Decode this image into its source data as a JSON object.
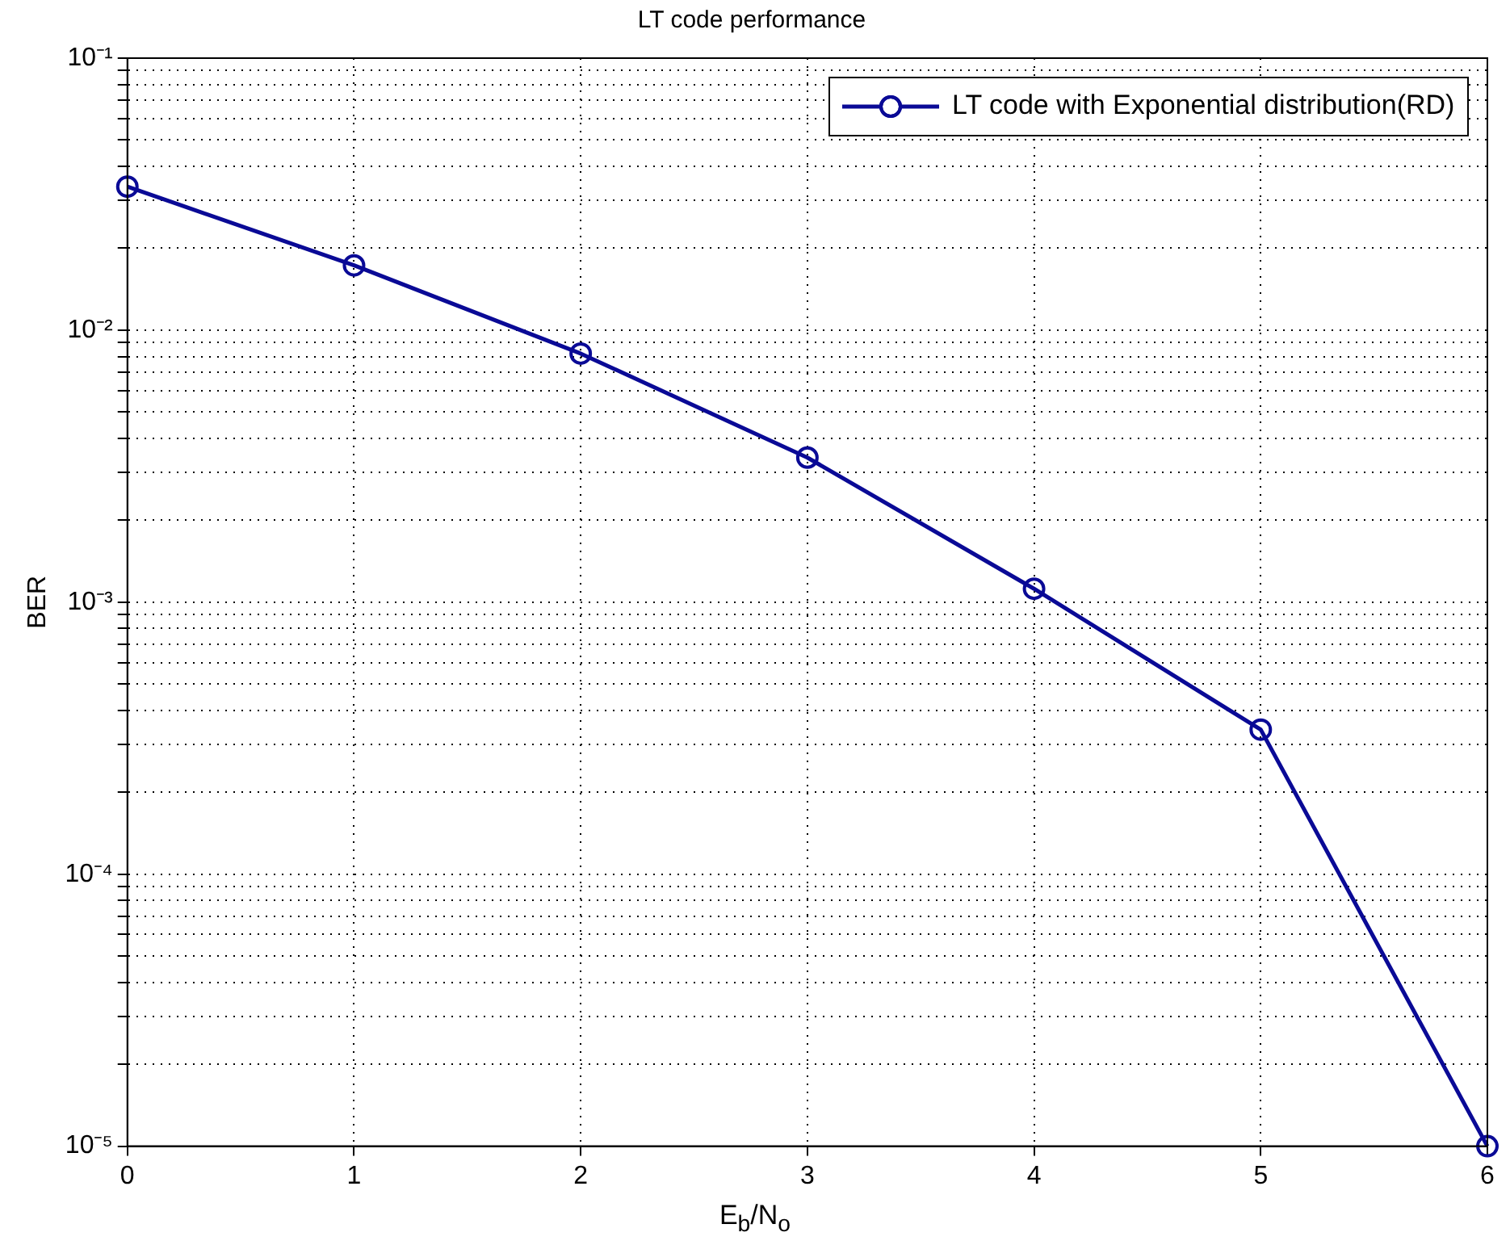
{
  "chart_data": {
    "type": "line",
    "title": "LT code performance",
    "xlabel": "E$_{b}$/N$_{o}$",
    "ylabel": "BER",
    "x": [
      0,
      1,
      2,
      3,
      4,
      5,
      6
    ],
    "series": [
      {
        "name": "LT code with Exponential distribution(RD)",
        "color": "#0a0a96",
        "values": [
          0.0337,
          0.0173,
          0.0082,
          0.0034,
          0.00112,
          0.00034,
          1e-05
        ]
      }
    ],
    "xlim": [
      0,
      6
    ],
    "xticks": [
      0,
      1,
      2,
      3,
      4,
      5,
      6
    ],
    "ylim": [
      1e-05,
      0.1
    ],
    "log": true,
    "yticks": [
      {
        "value": 1e-05,
        "label": "10⁻⁵"
      },
      {
        "value": 2e-05,
        "label": null
      },
      {
        "value": 3e-05,
        "label": null
      },
      {
        "value": 4e-05,
        "label": null
      },
      {
        "value": 5e-05,
        "label": null
      },
      {
        "value": 6e-05,
        "label": null
      },
      {
        "value": 7e-05,
        "label": null
      },
      {
        "value": 8e-05,
        "label": null
      },
      {
        "value": 9e-05,
        "label": null
      },
      {
        "value": 0.0001,
        "label": "10⁻⁴"
      },
      {
        "value": 0.0002,
        "label": null
      },
      {
        "value": 0.0003,
        "label": null
      },
      {
        "value": 0.0004,
        "label": null
      },
      {
        "value": 0.0005,
        "label": null
      },
      {
        "value": 0.0006,
        "label": null
      },
      {
        "value": 0.0007,
        "label": null
      },
      {
        "value": 0.0008,
        "label": null
      },
      {
        "value": 0.0009,
        "label": null
      },
      {
        "value": 0.001,
        "label": "10⁻³"
      },
      {
        "value": 0.002,
        "label": null
      },
      {
        "value": 0.003,
        "label": null
      },
      {
        "value": 0.004,
        "label": null
      },
      {
        "value": 0.005,
        "label": null
      },
      {
        "value": 0.006,
        "label": null
      },
      {
        "value": 0.007,
        "label": null
      },
      {
        "value": 0.008,
        "label": null
      },
      {
        "value": 0.009,
        "label": null
      },
      {
        "value": 0.01,
        "label": "10⁻²"
      },
      {
        "value": 0.02,
        "label": null
      },
      {
        "value": 0.03,
        "label": null
      },
      {
        "value": 0.04,
        "label": null
      },
      {
        "value": 0.05,
        "label": null
      },
      {
        "value": 0.06,
        "label": null
      },
      {
        "value": 0.07,
        "label": null
      },
      {
        "value": 0.08,
        "label": null
      },
      {
        "value": 0.09,
        "label": null
      },
      {
        "value": 0.1,
        "label": "10⁻¹"
      }
    ],
    "grid": true,
    "legend": "top right",
    "marker": "circle",
    "line_style": "solid"
  }
}
